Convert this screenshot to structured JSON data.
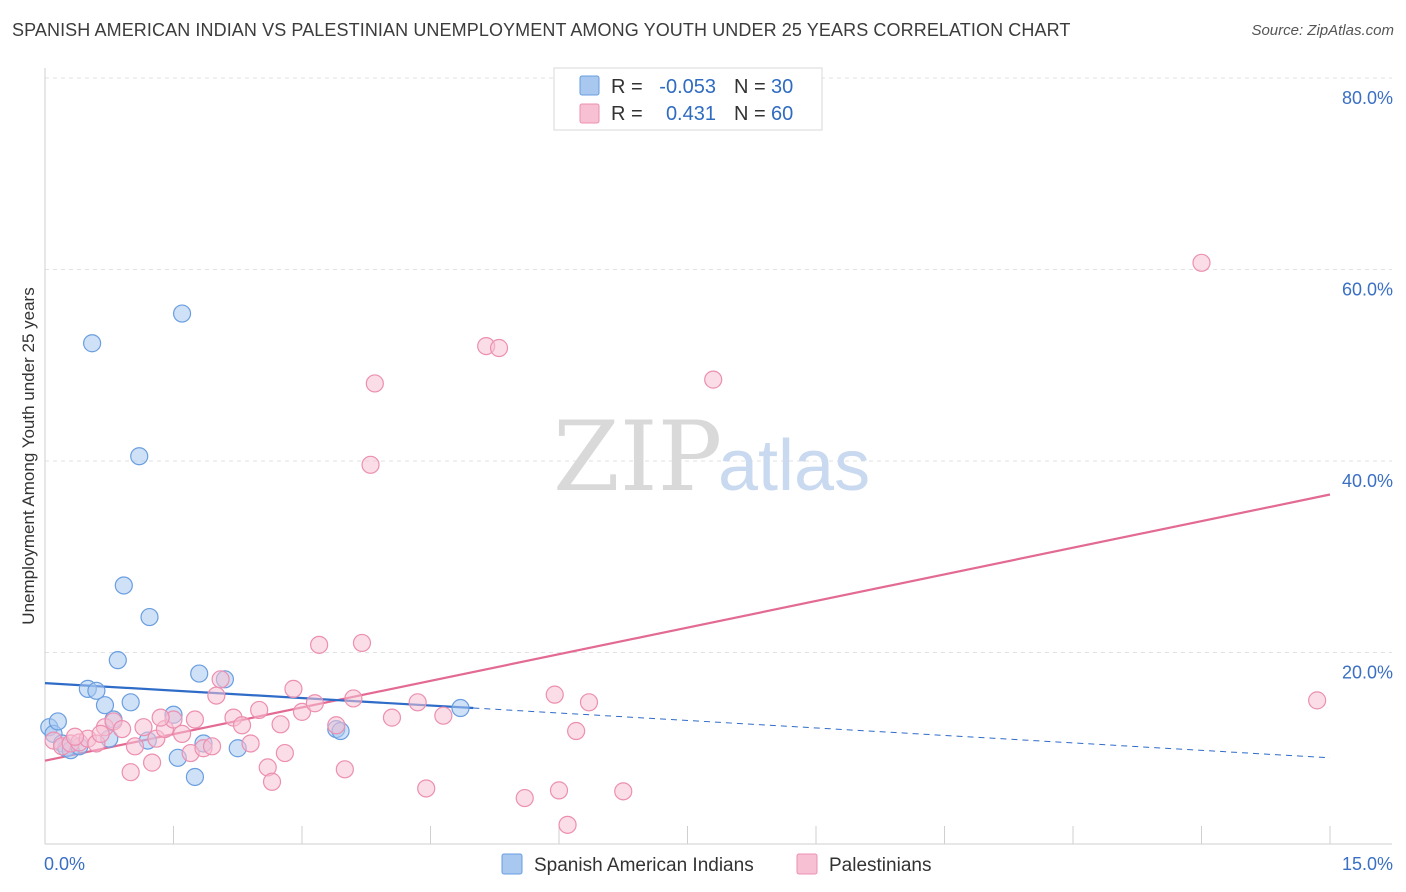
{
  "title": "SPANISH AMERICAN INDIAN VS PALESTINIAN UNEMPLOYMENT AMONG YOUTH UNDER 25 YEARS CORRELATION CHART",
  "source": "Source: ZipAtlas.com",
  "watermark": {
    "zip": "ZIP",
    "atlas": "atlas"
  },
  "colors": {
    "blue": "#a8c8f0",
    "blue_stroke": "#6a9ee0",
    "blue_line": "#2f6cc8",
    "pink": "#f7c1d3",
    "pink_stroke": "#ec8fb0",
    "pink_line": "#e26a93",
    "axis_label": "#3a6fc4",
    "grid": "#e2e2e2"
  },
  "legend": {
    "rows": [
      {
        "r_label": "R =",
        "r_value": "-0.053",
        "n_label": "N =",
        "n_value": "30",
        "series": "blue"
      },
      {
        "r_label": "R =",
        "r_value": "0.431",
        "n_label": "N =",
        "n_value": "60",
        "series": "pink"
      }
    ]
  },
  "chart_data": {
    "type": "scatter",
    "title": "SPANISH AMERICAN INDIAN VS PALESTINIAN UNEMPLOYMENT AMONG YOUTH UNDER 25 YEARS CORRELATION CHART",
    "xlabel": "",
    "ylabel": "Unemployment Among Youth under 25 years",
    "xlim": [
      0,
      15
    ],
    "ylim": [
      0,
      80
    ],
    "x_tick_labels": [
      "0.0%",
      "15.0%"
    ],
    "y_tick_labels": [
      "20.0%",
      "40.0%",
      "60.0%",
      "80.0%"
    ],
    "y_ticks": [
      20,
      40,
      60,
      80
    ],
    "grid": true,
    "series": [
      {
        "name": "Spanish American Indians",
        "color": "blue",
        "r": -0.053,
        "n": 30,
        "trend": {
          "x0": 0,
          "y0": 16.8,
          "x1": 5.0,
          "y1": 14.2,
          "dashed_to_x": 15.0,
          "dashed_to_y": 9.0
        },
        "points": [
          [
            0.05,
            12.2
          ],
          [
            0.1,
            11.5
          ],
          [
            0.15,
            12.8
          ],
          [
            0.2,
            10.5
          ],
          [
            0.25,
            10.0
          ],
          [
            0.3,
            9.8
          ],
          [
            0.4,
            10.2
          ],
          [
            0.5,
            16.2
          ],
          [
            0.55,
            52.3
          ],
          [
            0.6,
            16.0
          ],
          [
            0.7,
            14.5
          ],
          [
            0.75,
            11.0
          ],
          [
            0.8,
            13.0
          ],
          [
            0.85,
            19.2
          ],
          [
            0.92,
            27.0
          ],
          [
            1.0,
            14.8
          ],
          [
            1.1,
            40.5
          ],
          [
            1.2,
            10.8
          ],
          [
            1.22,
            23.7
          ],
          [
            1.5,
            13.5
          ],
          [
            1.55,
            9.0
          ],
          [
            1.6,
            55.4
          ],
          [
            1.75,
            7.0
          ],
          [
            1.8,
            17.8
          ],
          [
            1.85,
            10.5
          ],
          [
            2.1,
            17.2
          ],
          [
            2.25,
            10.0
          ],
          [
            3.4,
            12.0
          ],
          [
            3.45,
            11.8
          ],
          [
            4.85,
            14.2
          ]
        ]
      },
      {
        "name": "Palestinians",
        "color": "pink",
        "r": 0.431,
        "n": 60,
        "trend": {
          "x0": 0,
          "y0": 8.7,
          "x1": 15.0,
          "y1": 36.5
        },
        "points": [
          [
            0.1,
            10.8
          ],
          [
            0.2,
            10.2
          ],
          [
            0.3,
            10.5
          ],
          [
            0.4,
            10.6
          ],
          [
            0.5,
            11.0
          ],
          [
            0.6,
            10.5
          ],
          [
            0.7,
            12.2
          ],
          [
            0.8,
            12.8
          ],
          [
            0.9,
            12.0
          ],
          [
            1.0,
            7.5
          ],
          [
            1.05,
            10.2
          ],
          [
            1.15,
            12.2
          ],
          [
            1.25,
            8.5
          ],
          [
            1.3,
            11.0
          ],
          [
            1.4,
            12.0
          ],
          [
            1.5,
            13.0
          ],
          [
            1.6,
            11.5
          ],
          [
            1.7,
            9.5
          ],
          [
            1.75,
            13.0
          ],
          [
            1.85,
            10.0
          ],
          [
            1.95,
            10.2
          ],
          [
            2.0,
            15.5
          ],
          [
            2.05,
            17.2
          ],
          [
            2.2,
            13.2
          ],
          [
            2.3,
            12.4
          ],
          [
            2.4,
            10.5
          ],
          [
            2.5,
            14.0
          ],
          [
            2.6,
            8.0
          ],
          [
            2.65,
            6.5
          ],
          [
            2.75,
            12.5
          ],
          [
            2.8,
            9.5
          ],
          [
            2.9,
            16.2
          ],
          [
            3.0,
            13.8
          ],
          [
            3.15,
            14.7
          ],
          [
            3.2,
            20.8
          ],
          [
            3.4,
            12.4
          ],
          [
            3.5,
            7.8
          ],
          [
            3.6,
            15.2
          ],
          [
            3.7,
            21.0
          ],
          [
            3.8,
            39.6
          ],
          [
            3.85,
            48.1
          ],
          [
            4.05,
            13.2
          ],
          [
            4.35,
            14.8
          ],
          [
            4.45,
            5.8
          ],
          [
            4.65,
            13.4
          ],
          [
            5.15,
            52.0
          ],
          [
            5.3,
            51.8
          ],
          [
            5.6,
            4.8
          ],
          [
            5.95,
            15.6
          ],
          [
            6.0,
            5.6
          ],
          [
            6.1,
            2.0
          ],
          [
            6.2,
            11.8
          ],
          [
            6.35,
            14.8
          ],
          [
            6.75,
            5.5
          ],
          [
            7.8,
            48.5
          ],
          [
            13.5,
            60.7
          ],
          [
            14.85,
            15.0
          ],
          [
            0.35,
            11.2
          ],
          [
            0.65,
            11.5
          ],
          [
            1.35,
            13.2
          ]
        ]
      }
    ],
    "legend_position": "bottom-center"
  }
}
